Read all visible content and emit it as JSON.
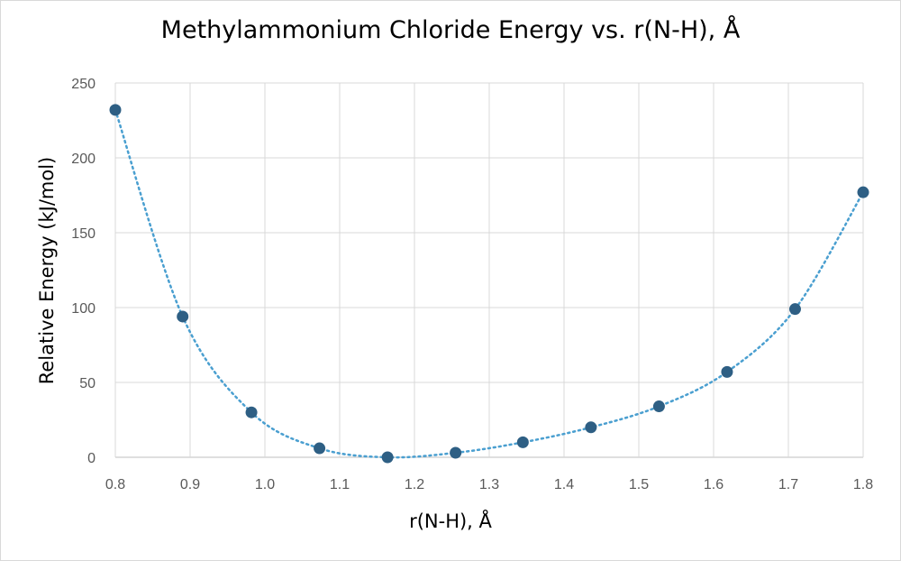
{
  "chart_data": {
    "type": "scatter",
    "title": "Methylammonium Chloride Energy vs. r(N-H), Å",
    "xlabel": "r(N-H), Å",
    "ylabel": "Relative Energy (kJ/mol)",
    "xlim": [
      0.8,
      1.8
    ],
    "ylim": [
      0,
      250
    ],
    "xticks": [
      "0.8",
      "0.9",
      "1.0",
      "1.1",
      "1.2",
      "1.3",
      "1.4",
      "1.5",
      "1.6",
      "1.7",
      "1.8"
    ],
    "yticks": [
      "0",
      "50",
      "100",
      "150",
      "200",
      "250"
    ],
    "grid": true,
    "trendline": "dotted smooth curve",
    "marker_color": "#2e5f84",
    "line_color": "#4a9fd0",
    "series": [
      {
        "x": [
          0.8,
          0.89,
          0.982,
          1.073,
          1.164,
          1.255,
          1.345,
          1.436,
          1.527,
          1.618,
          1.709,
          1.8
        ],
        "y": [
          232,
          94,
          30,
          6,
          0,
          3,
          10,
          20,
          34,
          57,
          99,
          177
        ]
      }
    ]
  }
}
